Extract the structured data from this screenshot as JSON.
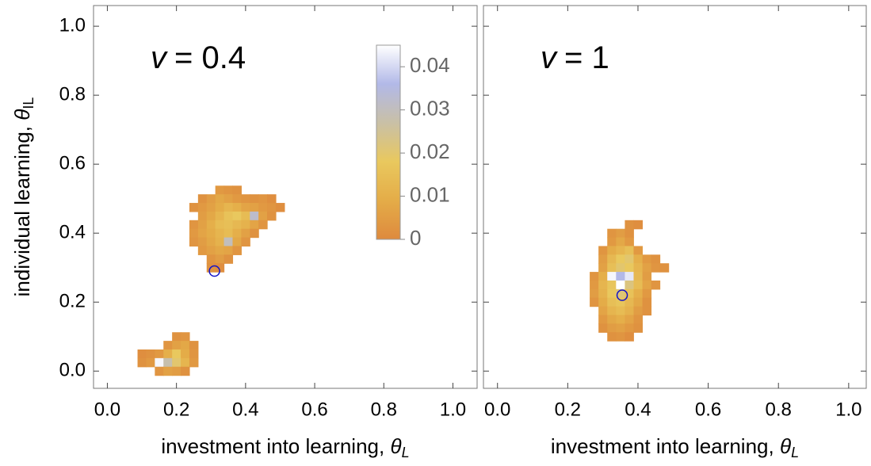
{
  "chart_data": [
    {
      "type": "heatmap",
      "annotation": {
        "symbol": "v",
        "text": "= 0.4"
      },
      "xlabel": {
        "text": "investment into learning, ",
        "symbol": "θ",
        "subscript": "L"
      },
      "ylabel": {
        "text": "individual learning, ",
        "symbol": "θ",
        "subscript": "IL"
      },
      "xlim": [
        -0.04,
        1.07
      ],
      "ylim": [
        -0.05,
        1.06
      ],
      "xticks": [
        {
          "value": 0,
          "label": "0.0"
        },
        0.2,
        0.4,
        0.6,
        0.8,
        {
          "value": 1,
          "label": "1.0"
        }
      ],
      "yticks": [
        {
          "value": 0,
          "label": "0.0"
        },
        0.2,
        0.4,
        0.6,
        0.8,
        {
          "value": 1,
          "label": "1.0"
        }
      ],
      "colormap": [
        "#de8a3e",
        "#e4ac48",
        "#e9c85e",
        "#c9c0a6",
        "#b2b9e8",
        "#ffffff"
      ],
      "colorbar": {
        "lim": [
          0,
          0.045
        ],
        "ticks": [
          0,
          0.01,
          0.02,
          0.03,
          0.04
        ]
      },
      "marker": {
        "x": 0.31,
        "y": 0.29,
        "color": "#1414c8"
      },
      "cells": [
        [
          0.325,
          0.525,
          0.004
        ],
        [
          0.35,
          0.525,
          0.003
        ],
        [
          0.375,
          0.525,
          0.002
        ],
        [
          0.275,
          0.5,
          0.002
        ],
        [
          0.3,
          0.5,
          0.005
        ],
        [
          0.325,
          0.5,
          0.008
        ],
        [
          0.35,
          0.5,
          0.006
        ],
        [
          0.375,
          0.5,
          0.004
        ],
        [
          0.4,
          0.5,
          0.003
        ],
        [
          0.425,
          0.5,
          0.002
        ],
        [
          0.45,
          0.5,
          0.003
        ],
        [
          0.475,
          0.5,
          0.001
        ],
        [
          0.25,
          0.475,
          0.002
        ],
        [
          0.275,
          0.475,
          0.004
        ],
        [
          0.3,
          0.475,
          0.006
        ],
        [
          0.325,
          0.475,
          0.009
        ],
        [
          0.35,
          0.475,
          0.012
        ],
        [
          0.375,
          0.475,
          0.01
        ],
        [
          0.4,
          0.475,
          0.007
        ],
        [
          0.425,
          0.475,
          0.006
        ],
        [
          0.45,
          0.475,
          0.004
        ],
        [
          0.475,
          0.475,
          0.003
        ],
        [
          0.5,
          0.475,
          0.001
        ],
        [
          0.275,
          0.45,
          0.005
        ],
        [
          0.3,
          0.45,
          0.008
        ],
        [
          0.325,
          0.45,
          0.012
        ],
        [
          0.35,
          0.45,
          0.016
        ],
        [
          0.375,
          0.45,
          0.018
        ],
        [
          0.4,
          0.45,
          0.014
        ],
        [
          0.425,
          0.45,
          0.032
        ],
        [
          0.45,
          0.45,
          0.006
        ],
        [
          0.475,
          0.45,
          0.002
        ],
        [
          0.25,
          0.425,
          0.003
        ],
        [
          0.275,
          0.425,
          0.006
        ],
        [
          0.3,
          0.425,
          0.01
        ],
        [
          0.325,
          0.425,
          0.014
        ],
        [
          0.35,
          0.425,
          0.015
        ],
        [
          0.375,
          0.425,
          0.013
        ],
        [
          0.4,
          0.425,
          0.011
        ],
        [
          0.425,
          0.425,
          0.007
        ],
        [
          0.45,
          0.425,
          0.003
        ],
        [
          0.25,
          0.4,
          0.004
        ],
        [
          0.275,
          0.4,
          0.007
        ],
        [
          0.3,
          0.4,
          0.009
        ],
        [
          0.325,
          0.4,
          0.012
        ],
        [
          0.35,
          0.4,
          0.014
        ],
        [
          0.375,
          0.4,
          0.01
        ],
        [
          0.4,
          0.4,
          0.006
        ],
        [
          0.425,
          0.4,
          0.002
        ],
        [
          0.25,
          0.375,
          0.003
        ],
        [
          0.275,
          0.375,
          0.005
        ],
        [
          0.3,
          0.375,
          0.008
        ],
        [
          0.325,
          0.375,
          0.011
        ],
        [
          0.35,
          0.375,
          0.03
        ],
        [
          0.375,
          0.375,
          0.008
        ],
        [
          0.4,
          0.375,
          0.003
        ],
        [
          0.275,
          0.35,
          0.004
        ],
        [
          0.3,
          0.35,
          0.006
        ],
        [
          0.325,
          0.35,
          0.008
        ],
        [
          0.35,
          0.35,
          0.007
        ],
        [
          0.375,
          0.35,
          0.003
        ],
        [
          0.3,
          0.325,
          0.003
        ],
        [
          0.325,
          0.325,
          0.005
        ],
        [
          0.35,
          0.325,
          0.002
        ],
        [
          0.3,
          0.3,
          0.002
        ],
        [
          0.325,
          0.3,
          0.001
        ],
        [
          0.2,
          0.1,
          0.002
        ],
        [
          0.225,
          0.1,
          0.003
        ],
        [
          0.175,
          0.075,
          0.003
        ],
        [
          0.2,
          0.075,
          0.006
        ],
        [
          0.225,
          0.075,
          0.008
        ],
        [
          0.25,
          0.075,
          0.002
        ],
        [
          0.1,
          0.05,
          0.001
        ],
        [
          0.125,
          0.05,
          0.002
        ],
        [
          0.15,
          0.05,
          0.004
        ],
        [
          0.175,
          0.05,
          0.01
        ],
        [
          0.2,
          0.05,
          0.018
        ],
        [
          0.225,
          0.05,
          0.009
        ],
        [
          0.25,
          0.05,
          0.003
        ],
        [
          0.1,
          0.025,
          0.002
        ],
        [
          0.125,
          0.025,
          0.004
        ],
        [
          0.15,
          0.025,
          0.044
        ],
        [
          0.175,
          0.025,
          0.028
        ],
        [
          0.2,
          0.025,
          0.02
        ],
        [
          0.225,
          0.025,
          0.012
        ],
        [
          0.25,
          0.025,
          0.004
        ],
        [
          0.15,
          0,
          0.003
        ],
        [
          0.175,
          0,
          0.006
        ],
        [
          0.2,
          0,
          0.005
        ],
        [
          0.225,
          0,
          0.002
        ]
      ]
    },
    {
      "type": "heatmap",
      "annotation": {
        "symbol": "v",
        "text": "= 1"
      },
      "xlabel": {
        "text": "investment into learning, ",
        "symbol": "θ",
        "subscript": "L"
      },
      "xlim": [
        -0.04,
        1.05
      ],
      "ylim": [
        -0.05,
        1.06
      ],
      "xticks": [
        {
          "value": 0,
          "label": "0.0"
        },
        0.2,
        0.4,
        0.6,
        0.8,
        {
          "value": 1,
          "label": "1.0"
        }
      ],
      "yticks": [
        0,
        0.2,
        0.4,
        0.6,
        0.8,
        1
      ],
      "marker": {
        "x": 0.355,
        "y": 0.22,
        "color": "#1414c8"
      },
      "cells": [
        [
          0.375,
          0.425,
          0.002
        ],
        [
          0.4,
          0.425,
          0.001
        ],
        [
          0.325,
          0.4,
          0.003
        ],
        [
          0.35,
          0.4,
          0.005
        ],
        [
          0.375,
          0.4,
          0.002
        ],
        [
          0.325,
          0.375,
          0.004
        ],
        [
          0.35,
          0.375,
          0.008
        ],
        [
          0.375,
          0.375,
          0.004
        ],
        [
          0.3,
          0.35,
          0.003
        ],
        [
          0.325,
          0.35,
          0.009
        ],
        [
          0.35,
          0.35,
          0.012
        ],
        [
          0.375,
          0.35,
          0.015
        ],
        [
          0.4,
          0.35,
          0.004
        ],
        [
          0.3,
          0.325,
          0.005
        ],
        [
          0.325,
          0.325,
          0.013
        ],
        [
          0.35,
          0.325,
          0.018
        ],
        [
          0.375,
          0.325,
          0.02
        ],
        [
          0.4,
          0.325,
          0.01
        ],
        [
          0.425,
          0.325,
          0.004
        ],
        [
          0.45,
          0.325,
          0.002
        ],
        [
          0.3,
          0.3,
          0.006
        ],
        [
          0.325,
          0.3,
          0.015
        ],
        [
          0.35,
          0.3,
          0.02
        ],
        [
          0.375,
          0.3,
          0.018
        ],
        [
          0.4,
          0.3,
          0.012
        ],
        [
          0.425,
          0.3,
          0.006
        ],
        [
          0.45,
          0.3,
          0.003
        ],
        [
          0.475,
          0.3,
          0.002
        ],
        [
          0.275,
          0.275,
          0.003
        ],
        [
          0.3,
          0.275,
          0.01
        ],
        [
          0.325,
          0.275,
          0.044
        ],
        [
          0.35,
          0.275,
          0.036
        ],
        [
          0.375,
          0.275,
          0.042
        ],
        [
          0.4,
          0.275,
          0.013
        ],
        [
          0.425,
          0.275,
          0.005
        ],
        [
          0.275,
          0.25,
          0.004
        ],
        [
          0.3,
          0.25,
          0.012
        ],
        [
          0.325,
          0.25,
          0.017
        ],
        [
          0.35,
          0.25,
          0.045
        ],
        [
          0.375,
          0.25,
          0.022
        ],
        [
          0.4,
          0.25,
          0.014
        ],
        [
          0.425,
          0.25,
          0.007
        ],
        [
          0.45,
          0.25,
          0.003
        ],
        [
          0.275,
          0.225,
          0.005
        ],
        [
          0.3,
          0.225,
          0.011
        ],
        [
          0.325,
          0.225,
          0.018
        ],
        [
          0.35,
          0.225,
          0.021
        ],
        [
          0.375,
          0.225,
          0.016
        ],
        [
          0.4,
          0.225,
          0.01
        ],
        [
          0.425,
          0.225,
          0.004
        ],
        [
          0.275,
          0.2,
          0.003
        ],
        [
          0.3,
          0.2,
          0.009
        ],
        [
          0.325,
          0.2,
          0.015
        ],
        [
          0.35,
          0.2,
          0.017
        ],
        [
          0.375,
          0.2,
          0.013
        ],
        [
          0.4,
          0.2,
          0.008
        ],
        [
          0.425,
          0.2,
          0.002
        ],
        [
          0.3,
          0.175,
          0.007
        ],
        [
          0.325,
          0.175,
          0.012
        ],
        [
          0.35,
          0.175,
          0.014
        ],
        [
          0.375,
          0.175,
          0.011
        ],
        [
          0.4,
          0.175,
          0.005
        ],
        [
          0.425,
          0.175,
          0.002
        ],
        [
          0.3,
          0.15,
          0.004
        ],
        [
          0.325,
          0.15,
          0.008
        ],
        [
          0.35,
          0.15,
          0.01
        ],
        [
          0.375,
          0.15,
          0.007
        ],
        [
          0.4,
          0.15,
          0.003
        ],
        [
          0.3,
          0.125,
          0.002
        ],
        [
          0.325,
          0.125,
          0.005
        ],
        [
          0.35,
          0.125,
          0.006
        ],
        [
          0.375,
          0.125,
          0.004
        ],
        [
          0.4,
          0.125,
          0.002
        ],
        [
          0.325,
          0.1,
          0.002
        ],
        [
          0.35,
          0.1,
          0.003
        ],
        [
          0.375,
          0.1,
          0.001
        ]
      ]
    }
  ]
}
